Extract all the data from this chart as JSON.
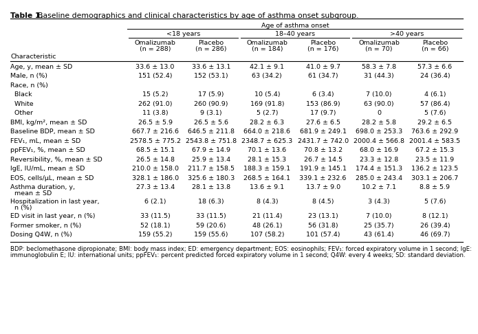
{
  "title_bold": "Table 1.",
  "title_normal": "  Baseline demographics and clinical characteristics by age of asthma onset subgroup.",
  "col_header_level1": "Age of asthma onset",
  "col_header_level2": [
    "<18 years",
    "18–40 years",
    ">40 years"
  ],
  "col_header_level3_top": [
    "Omalizumab",
    "Placebo",
    "Omalizumab",
    "Placebo",
    "Omalizumab",
    "Placebo"
  ],
  "col_header_level3_bot": [
    "(n = 288)",
    "(n = 286)",
    "(n = 184)",
    "(n = 176)",
    "(n = 70)",
    "(n = 66)"
  ],
  "row_header": "Characteristic",
  "rows": [
    {
      "label": "Age, y, mean ± SD",
      "vals": [
        "33.6 ± 13.0",
        "33.6 ± 13.1",
        "42.1 ± 9.1",
        "41.0 ± 9.7",
        "58.3 ± 7.8",
        "57.3 ± 6.6"
      ],
      "indent": false,
      "multiline": false
    },
    {
      "label": "Male, n (%)",
      "vals": [
        "151 (52.4)",
        "152 (53.1)",
        "63 (34.2)",
        "61 (34.7)",
        "31 (44.3)",
        "24 (36.4)"
      ],
      "indent": false,
      "multiline": false
    },
    {
      "label": "Race, n (%)",
      "vals": [
        "",
        "",
        "",
        "",
        "",
        ""
      ],
      "indent": false,
      "multiline": false
    },
    {
      "label": "  Black",
      "vals": [
        "15 (5.2)",
        "17 (5.9)",
        "10 (5.4)",
        "6 (3.4)",
        "7 (10.0)",
        "4 (6.1)"
      ],
      "indent": true,
      "multiline": false
    },
    {
      "label": "  White",
      "vals": [
        "262 (91.0)",
        "260 (90.9)",
        "169 (91.8)",
        "153 (86.9)",
        "63 (90.0)",
        "57 (86.4)"
      ],
      "indent": true,
      "multiline": false
    },
    {
      "label": "  Other",
      "vals": [
        "11 (3.8)",
        "9 (3.1)",
        "5 (2.7)",
        "17 (9.7)",
        "0",
        "5 (7.6)"
      ],
      "indent": true,
      "multiline": false
    },
    {
      "label": "BMI, kg/m², mean ± SD",
      "vals": [
        "26.5 ± 5.9",
        "26.5 ± 5.6",
        "28.2 ± 6.3",
        "27.6 ± 6.5",
        "28.2 ± 5.8",
        "29.2 ± 6.5"
      ],
      "indent": false,
      "multiline": false
    },
    {
      "label": "Baseline BDP, mean ± SD",
      "vals": [
        "667.7 ± 216.6",
        "646.5 ± 211.8",
        "664.0 ± 218.6",
        "681.9 ± 249.1",
        "698.0 ± 253.3",
        "763.6 ± 292.9"
      ],
      "indent": false,
      "multiline": false
    },
    {
      "label": "FEV₁, mL, mean ± SD",
      "vals": [
        "2578.5 ± 775.2",
        "2543.8 ± 751.8",
        "2348.7 ± 625.3",
        "2431.7 ± 742.0",
        "2000.4 ± 566.8",
        "2001.4 ± 583.5"
      ],
      "indent": false,
      "multiline": false
    },
    {
      "label": "ppFEV₁, %, mean ± SD",
      "vals": [
        "68.5 ± 15.1",
        "67.9 ± 14.9",
        "70.1 ± 13.6",
        "70.8 ± 13.2",
        "68.0 ± 16.9",
        "67.2 ± 15.3"
      ],
      "indent": false,
      "multiline": false
    },
    {
      "label": "Reversibility, %, mean ± SD",
      "vals": [
        "26.5 ± 14.8",
        "25.9 ± 13.4",
        "28.1 ± 15.3",
        "26.7 ± 14.5",
        "23.3 ± 12.8",
        "23.5 ± 11.9"
      ],
      "indent": false,
      "multiline": false
    },
    {
      "label": "IgE, IU/mL, mean ± SD",
      "vals": [
        "210.0 ± 158.0",
        "211.7 ± 158.5",
        "188.3 ± 159.1",
        "191.9 ± 145.1",
        "174.4 ± 151.3",
        "136.2 ± 123.5"
      ],
      "indent": false,
      "multiline": false
    },
    {
      "label": "EOS, cells/μL, mean ± SD",
      "vals": [
        "328.1 ± 186.0",
        "325.6 ± 180.3",
        "268.5 ± 164.1",
        "339.1 ± 232.6",
        "285.0 ± 243.4",
        "303.1 ± 206.7"
      ],
      "indent": false,
      "multiline": false
    },
    {
      "label": "Asthma duration, y,",
      "label2": "  mean ± SD",
      "vals": [
        "27.3 ± 13.4",
        "28.1 ± 13.8",
        "13.6 ± 9.1",
        "13.7 ± 9.0",
        "10.2 ± 7.1",
        "8.8 ± 5.9"
      ],
      "indent": false,
      "multiline": true
    },
    {
      "label": "Hospitalization in last year,",
      "label2": "  n (%)",
      "vals": [
        "6 (2.1)",
        "18 (6.3)",
        "8 (4.3)",
        "8 (4.5)",
        "3 (4.3)",
        "5 (7.6)"
      ],
      "indent": false,
      "multiline": true
    },
    {
      "label": "ED visit in last year, n (%)",
      "vals": [
        "33 (11.5)",
        "33 (11.5)",
        "21 (11.4)",
        "23 (13.1)",
        "7 (10.0)",
        "8 (12.1)"
      ],
      "indent": false,
      "multiline": false
    },
    {
      "label": "Former smoker, n (%)",
      "vals": [
        "52 (18.1)",
        "59 (20.6)",
        "48 (26.1)",
        "56 (31.8)",
        "25 (35.7)",
        "26 (39.4)"
      ],
      "indent": false,
      "multiline": false
    },
    {
      "label": "Dosing Q4W, n (%)",
      "vals": [
        "159 (55.2)",
        "159 (55.6)",
        "107 (58.2)",
        "101 (57.4)",
        "43 (61.4)",
        "46 (69.7)"
      ],
      "indent": false,
      "multiline": false
    }
  ],
  "footnote_line1": "BDP: beclomethasone dipropionate; BMI: body mass index; ED: emergency department; EOS: eosinophils; FEV₁: forced expiratory volume in 1 second; IgE:",
  "footnote_line2": "immunoglobulin E; IU: international units; ppFEV₁: percent predicted forced expiratory volume in 1 second; Q4W: every 4 weeks; SD: standard deviation.",
  "bg_color": "#ffffff",
  "text_color": "#000000",
  "font_size": 6.8,
  "title_font_size": 7.8,
  "footnote_font_size": 6.2
}
